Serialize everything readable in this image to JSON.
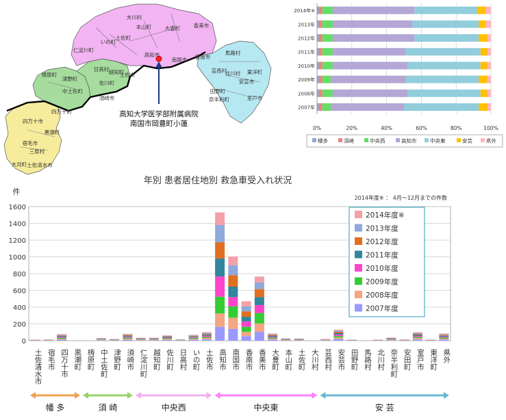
{
  "map": {
    "hospital_label_line1": "高知大学医学部附属病院",
    "hospital_label_line2": "南国市岡豊町小蓮",
    "region_colors": {
      "hata": "#f6ec9c",
      "susaki": "#a6dc9e",
      "chuo_w": "#a6dc9e",
      "chuo": "#f2b4f2",
      "chuo_e": "#f2b4f2",
      "aki": "#b6e8f2"
    },
    "labels": [
      {
        "text": "大川村"
      },
      {
        "text": "本山町"
      },
      {
        "text": "大豊町"
      },
      {
        "text": "いの町"
      },
      {
        "text": "土佐町"
      },
      {
        "text": "仁淀川町"
      },
      {
        "text": "日高村"
      },
      {
        "text": "越知町"
      },
      {
        "text": "佐川町"
      },
      {
        "text": "土佐市"
      },
      {
        "text": "高知市"
      },
      {
        "text": "南国市"
      },
      {
        "text": "香南市"
      },
      {
        "text": "香美市"
      },
      {
        "text": "馬路村"
      },
      {
        "text": "北川村"
      },
      {
        "text": "安芸市"
      },
      {
        "text": "芸西村"
      },
      {
        "text": "田野町"
      },
      {
        "text": "奈半利町"
      },
      {
        "text": "東洋町"
      },
      {
        "text": "室戸市"
      },
      {
        "text": "梼原町"
      },
      {
        "text": "津野町"
      },
      {
        "text": "中土佐町"
      },
      {
        "text": "須崎市"
      },
      {
        "text": "四万十町"
      },
      {
        "text": "四万十市"
      },
      {
        "text": "黒潮町"
      },
      {
        "text": "宿毛市"
      },
      {
        "text": "三原村"
      },
      {
        "text": "大月町"
      },
      {
        "text": "土佐清水市"
      }
    ]
  },
  "chart_data": [
    {
      "type": "bar",
      "orientation": "horizontal",
      "stacked": "percent",
      "categories": [
        "2014年※",
        "2013年",
        "2012年",
        "2011年",
        "2010年",
        "2009年",
        "2008年",
        "2007年"
      ],
      "series": [
        {
          "name": "幡多",
          "color": "#8ea9db",
          "values": [
            1,
            1,
            1,
            1,
            1,
            1,
            1,
            1
          ]
        },
        {
          "name": "須崎",
          "color": "#f08080",
          "values": [
            2,
            2,
            2,
            2,
            2,
            2,
            2,
            2
          ]
        },
        {
          "name": "中央西",
          "color": "#66dd66",
          "values": [
            6,
            6,
            6,
            6,
            6,
            5,
            6,
            5
          ]
        },
        {
          "name": "高知市",
          "color": "#b4a7d6",
          "values": [
            47,
            46,
            47,
            42,
            43,
            43,
            43,
            42
          ]
        },
        {
          "name": "中央東",
          "color": "#92cddc",
          "values": [
            36,
            38,
            37,
            43,
            42,
            42,
            42,
            43
          ]
        },
        {
          "name": "安芸",
          "color": "#ffc000",
          "values": [
            5,
            4,
            5,
            4,
            4,
            5,
            4,
            5
          ]
        },
        {
          "name": "県外",
          "color": "#ffb6c1",
          "values": [
            3,
            3,
            2,
            2,
            2,
            2,
            2,
            2
          ]
        }
      ],
      "xlim": [
        0,
        100
      ],
      "xticks": [
        "0%",
        "20%",
        "40%",
        "60%",
        "80%",
        "100%"
      ],
      "legend_position": "bottom"
    },
    {
      "type": "bar",
      "stacked": true,
      "title": "年別 患者居住地別 救急車受入れ状況",
      "ylabel": "件",
      "note": "2014年度※ ： 4月～12月までの件数",
      "ylim": [
        0,
        1600
      ],
      "yticks": [
        0,
        200,
        400,
        600,
        800,
        1000,
        1200,
        1400,
        1600
      ],
      "categories": [
        "土佐清水市",
        "宿毛市",
        "四万十市",
        "黒潮町",
        "梼原町",
        "中土佐町",
        "津野町",
        "須崎市",
        "仁淀川町",
        "越知町",
        "佐川町",
        "日高村",
        "いの町",
        "土佐市",
        "高知市",
        "南国市",
        "香南市",
        "香美市",
        "大豊町",
        "本山町",
        "土佐町",
        "大川村",
        "芸西村",
        "安芸市",
        "田野町",
        "馬路村",
        "北川村",
        "奈半利町",
        "安田町",
        "室戸市",
        "東洋町",
        "県外"
      ],
      "series": [
        {
          "name": "2007年度",
          "color": "#9999ff",
          "values": [
            2,
            2,
            12,
            0,
            0,
            5,
            3,
            12,
            5,
            5,
            10,
            3,
            10,
            15,
            165,
            140,
            55,
            105,
            12,
            4,
            4,
            0,
            3,
            20,
            2,
            0,
            2,
            5,
            2,
            15,
            2,
            12
          ]
        },
        {
          "name": "2008年度",
          "color": "#f4a582",
          "values": [
            2,
            2,
            10,
            0,
            0,
            5,
            3,
            12,
            5,
            5,
            10,
            3,
            10,
            15,
            160,
            135,
            50,
            100,
            12,
            4,
            4,
            0,
            3,
            18,
            2,
            0,
            2,
            5,
            2,
            15,
            2,
            12
          ]
        },
        {
          "name": "2009年度",
          "color": "#33cc33",
          "values": [
            2,
            2,
            11,
            0,
            0,
            5,
            3,
            11,
            5,
            5,
            9,
            2,
            10,
            14,
            200,
            135,
            60,
            125,
            12,
            4,
            4,
            0,
            3,
            18,
            2,
            0,
            2,
            5,
            2,
            14,
            2,
            12
          ]
        },
        {
          "name": "2010年度",
          "color": "#ff44cc",
          "values": [
            2,
            2,
            10,
            0,
            0,
            4,
            3,
            11,
            5,
            5,
            8,
            2,
            9,
            14,
            240,
            110,
            65,
            95,
            10,
            4,
            3,
            0,
            3,
            17,
            2,
            0,
            2,
            5,
            2,
            13,
            2,
            11
          ]
        },
        {
          "name": "2011年度",
          "color": "#31859c",
          "values": [
            2,
            2,
            10,
            0,
            0,
            4,
            3,
            10,
            4,
            4,
            8,
            2,
            9,
            13,
            215,
            125,
            55,
            95,
            11,
            3,
            3,
            0,
            2,
            17,
            2,
            0,
            2,
            5,
            2,
            13,
            2,
            11
          ]
        },
        {
          "name": "2012年度",
          "color": "#e07020",
          "values": [
            1,
            2,
            9,
            0,
            0,
            4,
            2,
            10,
            4,
            4,
            7,
            2,
            8,
            12,
            195,
            135,
            65,
            95,
            11,
            3,
            3,
            0,
            2,
            16,
            1,
            0,
            1,
            4,
            2,
            12,
            1,
            10
          ]
        },
        {
          "name": "2013年度",
          "color": "#8ea9db",
          "values": [
            1,
            1,
            9,
            0,
            0,
            3,
            2,
            9,
            4,
            4,
            7,
            2,
            8,
            11,
            205,
            120,
            60,
            80,
            10,
            3,
            3,
            0,
            2,
            15,
            1,
            0,
            1,
            4,
            1,
            11,
            1,
            10
          ]
        },
        {
          "name": "2014年度※",
          "color": "#f4a0a8",
          "values": [
            1,
            1,
            7,
            0,
            0,
            3,
            2,
            7,
            3,
            3,
            5,
            1,
            6,
            8,
            150,
            105,
            60,
            70,
            8,
            2,
            2,
            0,
            2,
            11,
            1,
            0,
            1,
            3,
            1,
            8,
            1,
            8
          ]
        }
      ],
      "legend_position": "right",
      "region_groups": [
        {
          "name": "幡 多",
          "color": "#f0a050",
          "from": 0,
          "to": 3
        },
        {
          "name": "須 崎",
          "color": "#9bd06a",
          "from": 4,
          "to": 7
        },
        {
          "name": "中央西",
          "color": "#f0b0f0",
          "from": 8,
          "to": 13
        },
        {
          "name": "中央東",
          "color": "#ff80ff",
          "from": 14,
          "to": 21
        },
        {
          "name": "安 芸",
          "color": "#6ab8d0",
          "from": 22,
          "to": 31
        }
      ]
    }
  ]
}
